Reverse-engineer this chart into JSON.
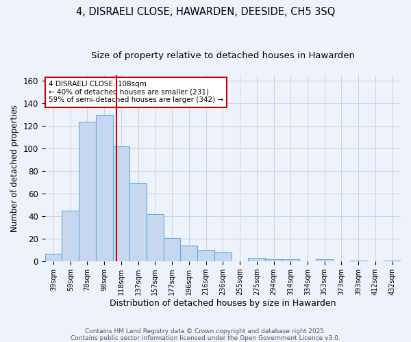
{
  "title": "4, DISRAELI CLOSE, HAWARDEN, DEESIDE, CH5 3SQ",
  "subtitle": "Size of property relative to detached houses in Hawarden",
  "xlabel": "Distribution of detached houses by size in Hawarden",
  "ylabel": "Number of detached properties",
  "categories": [
    "39sqm",
    "59sqm",
    "78sqm",
    "98sqm",
    "118sqm",
    "137sqm",
    "157sqm",
    "177sqm",
    "196sqm",
    "216sqm",
    "236sqm",
    "255sqm",
    "275sqm",
    "294sqm",
    "314sqm",
    "334sqm",
    "353sqm",
    "373sqm",
    "393sqm",
    "412sqm",
    "432sqm"
  ],
  "values": [
    7,
    45,
    124,
    130,
    102,
    69,
    42,
    21,
    14,
    10,
    8,
    0,
    3,
    2,
    2,
    0,
    2,
    0,
    1,
    0,
    1
  ],
  "bar_color": "#c5d8f0",
  "bar_edge_color": "#6aaad8",
  "grid_color": "#c8d4e8",
  "background_color": "#eef2fa",
  "vline_x": 3.7,
  "vline_color": "#cc0000",
  "annotation_text": "4 DISRAELI CLOSE: 108sqm\n← 40% of detached houses are smaller (231)\n59% of semi-detached houses are larger (342) →",
  "annotation_box_color": "#ffffff",
  "annotation_box_edge": "#cc0000",
  "footer_text": "Contains HM Land Registry data © Crown copyright and database right 2025.\nContains public sector information licensed under the Open Government Licence v3.0.",
  "ylim": [
    0,
    165
  ],
  "title_fontsize": 10.5,
  "subtitle_fontsize": 9.5,
  "tick_fontsize": 7,
  "ylabel_fontsize": 8.5,
  "xlabel_fontsize": 9,
  "annot_fontsize": 7.5,
  "footer_fontsize": 6.5
}
